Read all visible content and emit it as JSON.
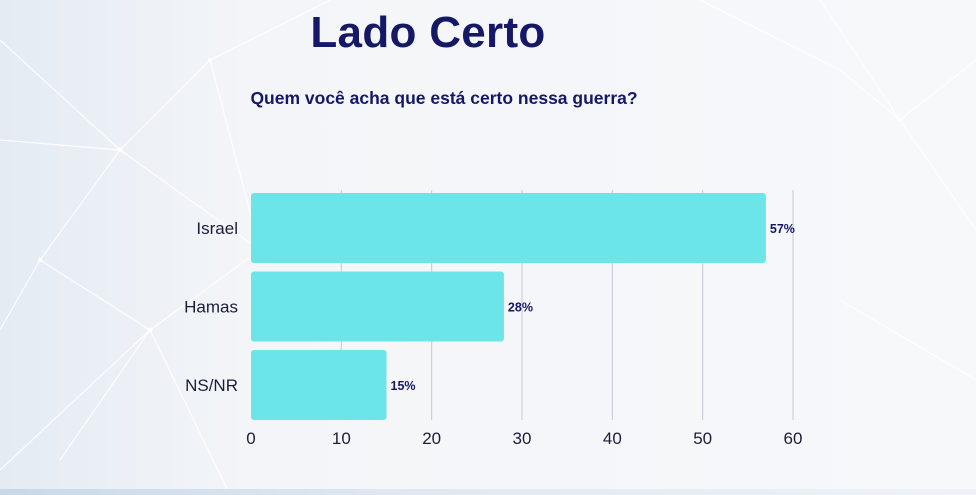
{
  "header": {
    "title": "Lado Certo",
    "subtitle": "Quem você acha que está certo nessa guerra?"
  },
  "colors": {
    "bar": "#6ce5e8",
    "text_dark": "#141866",
    "grid": "#c5c8d6"
  },
  "chart_data": {
    "type": "bar",
    "orientation": "horizontal",
    "categories": [
      "Israel",
      "Hamas",
      "NS/NR"
    ],
    "values": [
      57,
      28,
      15
    ],
    "data_labels": [
      "57%",
      "28%",
      "15%"
    ],
    "xlim": [
      0,
      60
    ],
    "xticks": [
      0,
      10,
      20,
      30,
      40,
      50,
      60
    ],
    "grid": true,
    "legend": "none"
  }
}
